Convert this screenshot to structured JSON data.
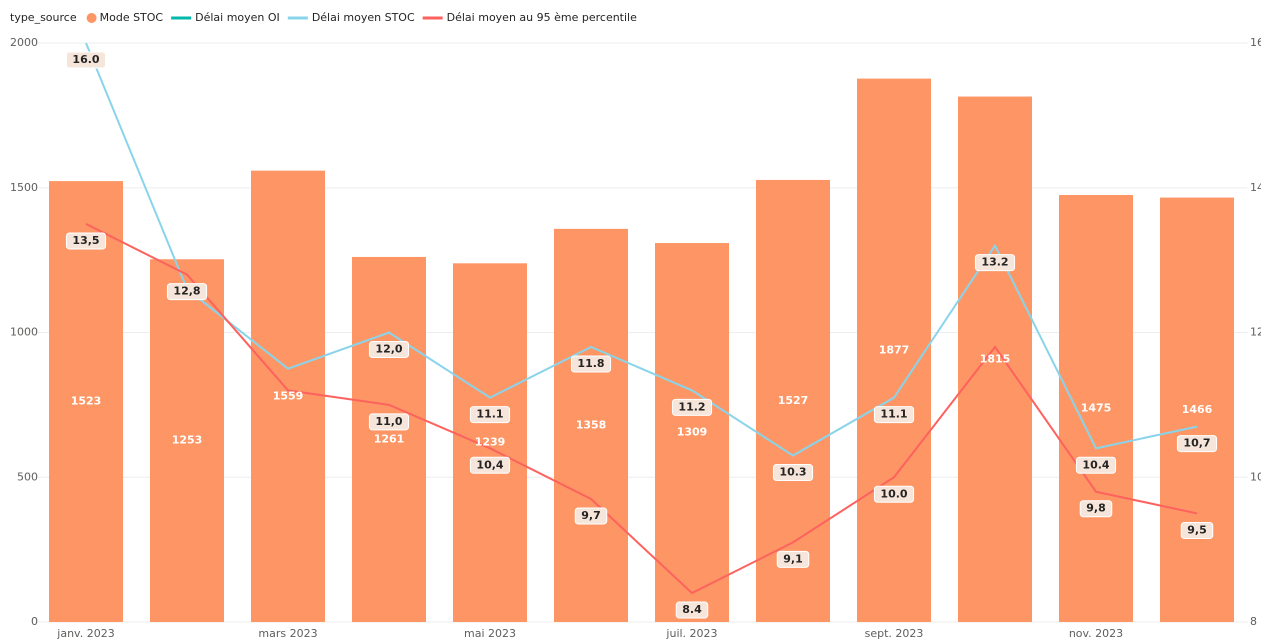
{
  "chart_data": {
    "type": "bar_line",
    "legend_title": "type_source",
    "categories": [
      "janv. 2023",
      null,
      "mars 2023",
      null,
      "mai 2023",
      null,
      "juil. 2023",
      null,
      "sept. 2023",
      null,
      "nov. 2023",
      null
    ],
    "series": [
      {
        "name": "Mode STOC",
        "type": "bar",
        "color": "#fd9664",
        "values": [
          1523,
          1253,
          1559,
          1261,
          1239,
          1358,
          1309,
          1527,
          1877,
          1815,
          1475,
          1466
        ]
      },
      {
        "name": "Délai moyen OI",
        "type": "line",
        "axis": "y2",
        "color": "#01b8aa",
        "values": [
          null,
          null,
          null,
          null,
          null,
          null,
          null,
          null,
          null,
          null,
          null,
          null
        ]
      },
      {
        "name": "Délai moyen STOC",
        "type": "line",
        "axis": "y2",
        "color": "#8ad4eb",
        "values": [
          16.0,
          12.6,
          11.5,
          12.0,
          11.1,
          11.8,
          11.2,
          10.3,
          11.1,
          13.2,
          10.4,
          10.7
        ],
        "value_labels": [
          "16.0",
          null,
          null,
          "12,0",
          "11.1",
          "11.8",
          "11.2",
          "10.3",
          "11.1",
          "13.2",
          "10.4",
          "10,7"
        ]
      },
      {
        "name": "Délai moyen au 95 ème percentile",
        "type": "line",
        "axis": "y2",
        "color": "#fd625e",
        "values": [
          13.5,
          12.8,
          11.2,
          11.0,
          10.4,
          9.7,
          8.4,
          9.1,
          10.0,
          11.8,
          9.8,
          9.5
        ],
        "value_labels": [
          "13,5",
          "12,8",
          null,
          "11,0",
          "10,4",
          "9,7",
          "8.4",
          "9,1",
          "10.0",
          null,
          "9,8",
          "9,5"
        ]
      }
    ],
    "ylim": [
      0,
      2000
    ],
    "yticks": [
      0,
      500,
      1000,
      1500,
      2000
    ],
    "y2lim": [
      8,
      16
    ],
    "y2ticks": [
      8,
      10,
      12,
      14,
      16
    ],
    "grid": true,
    "legend": "top-left"
  }
}
